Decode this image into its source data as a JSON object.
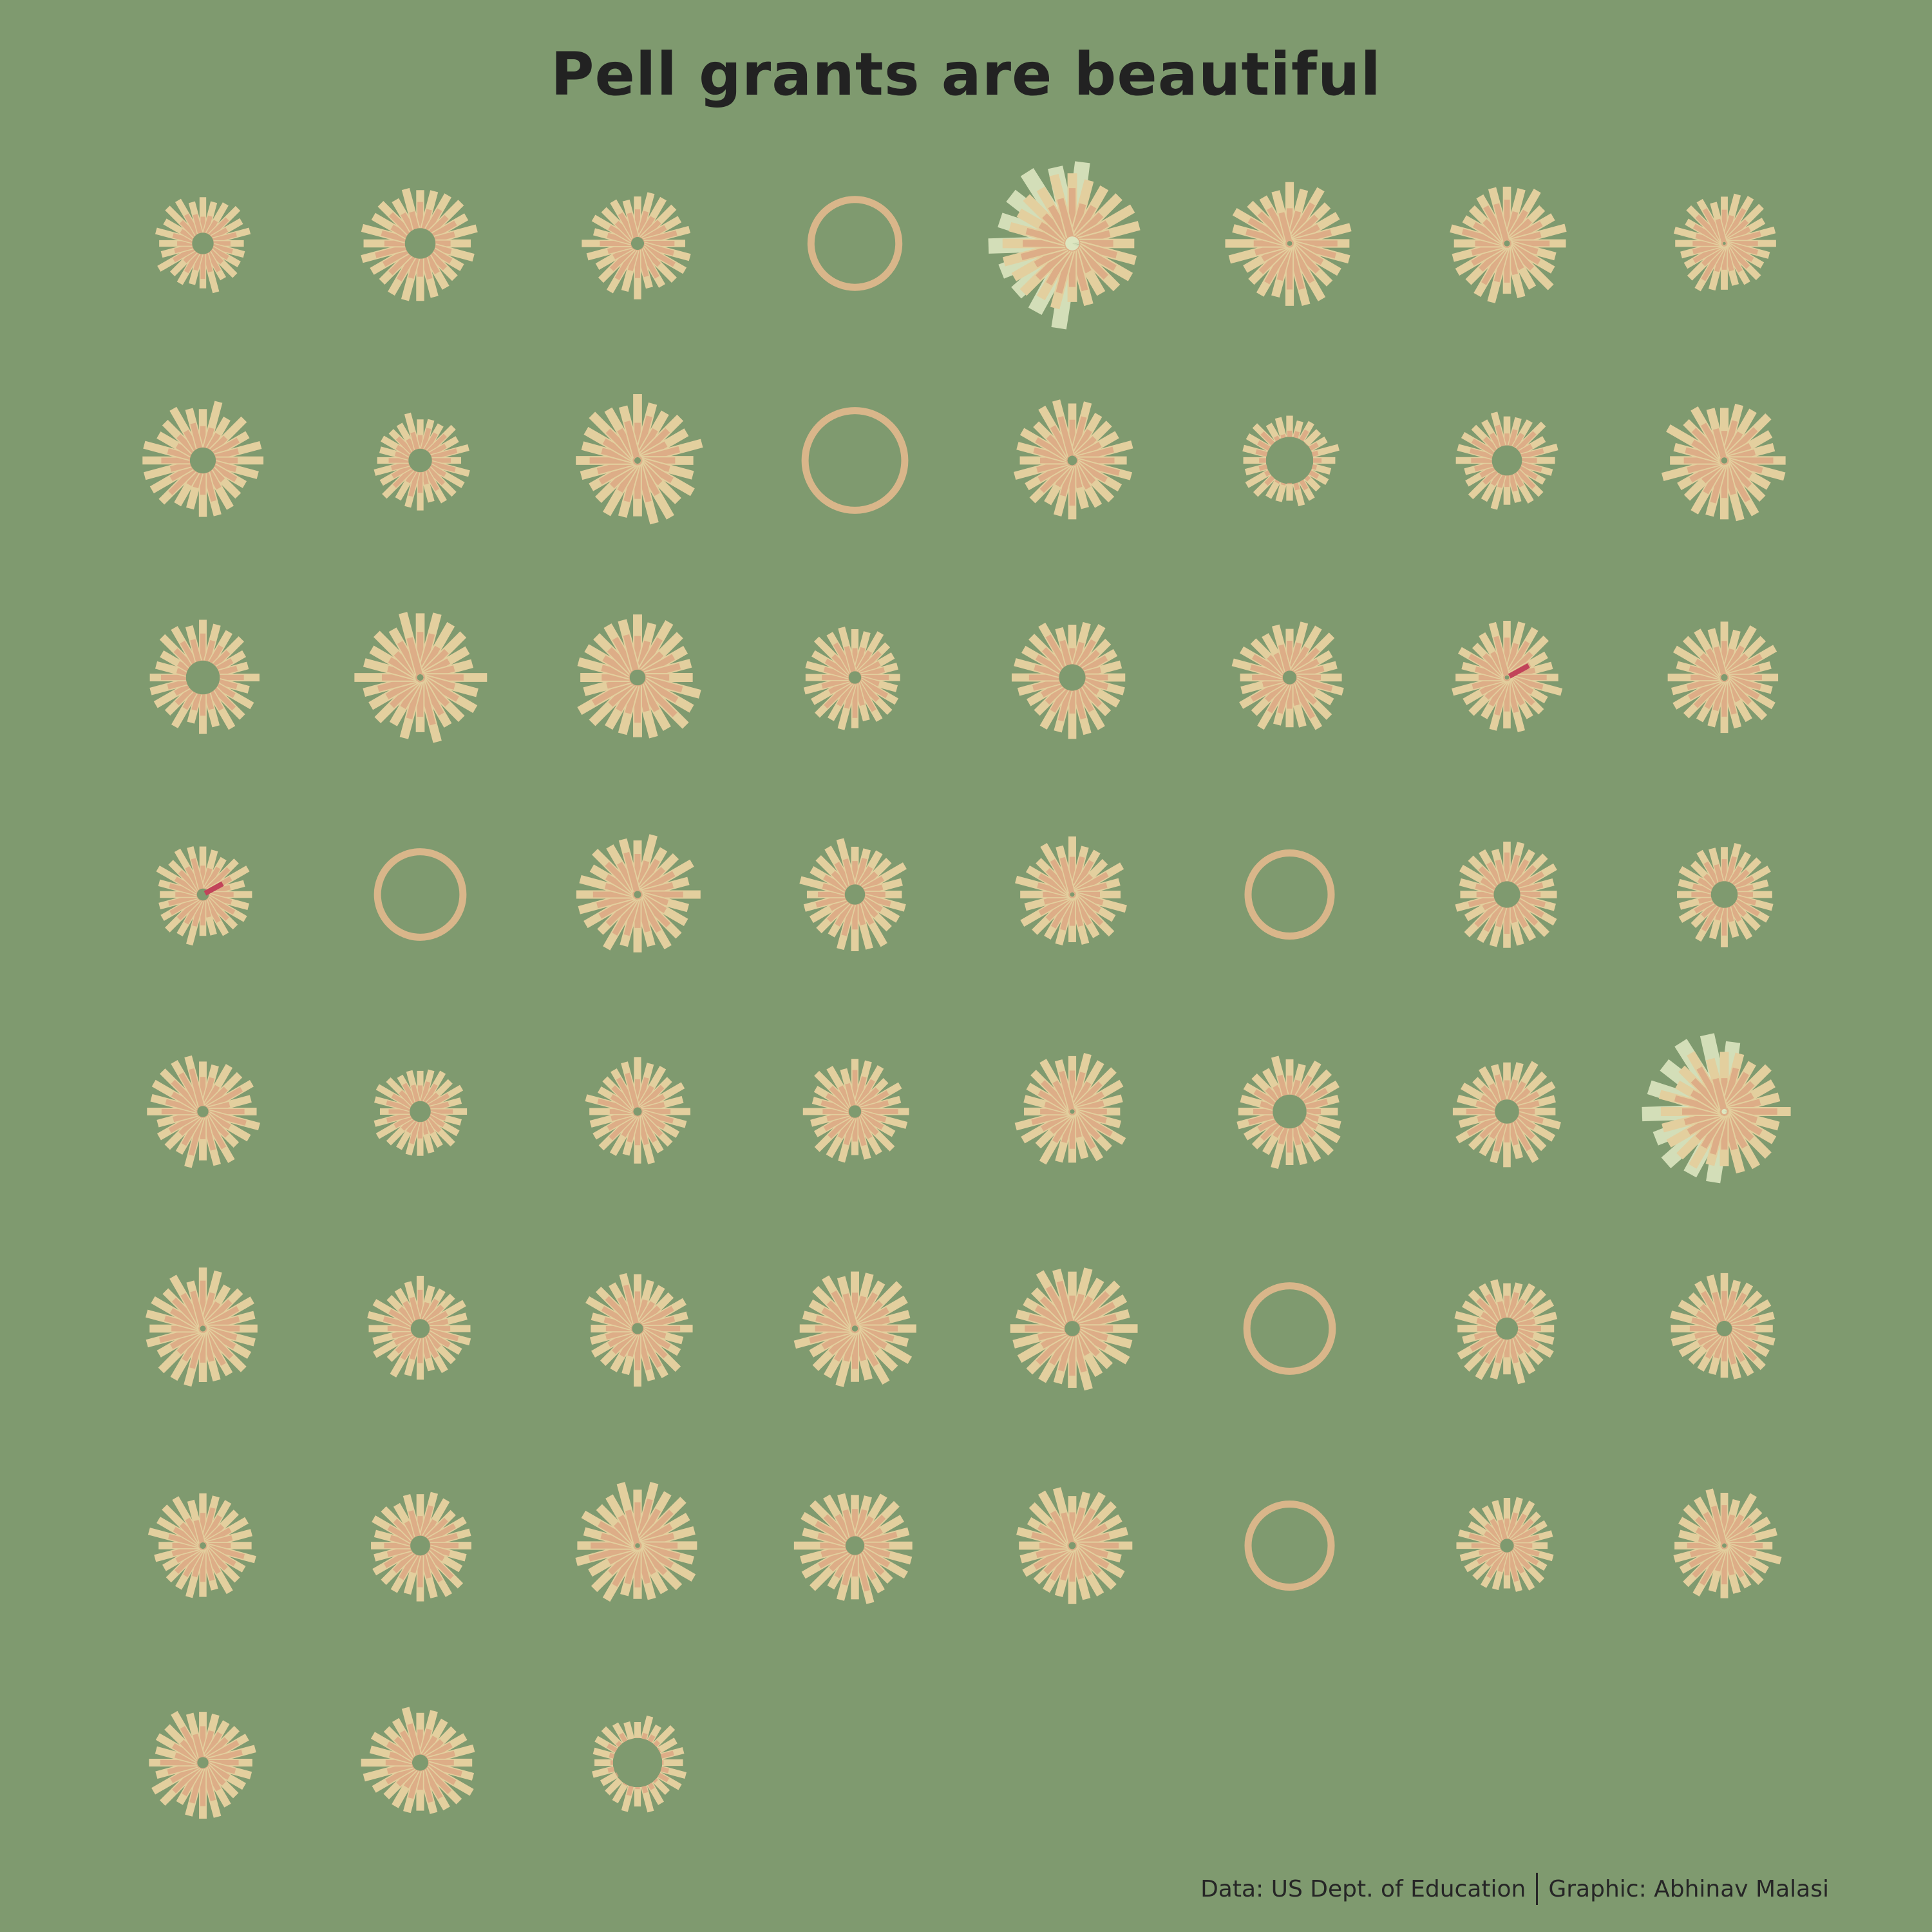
{
  "page": {
    "title": "Pell grants are beautiful",
    "caption_data": "Data: US Dept. of Education",
    "caption_graphic": "Graphic: Abhinav Malasi"
  },
  "colors": {
    "background": "#7f9a6f",
    "title": "#222222",
    "bar_outer": "#e3cf9e",
    "bar_inner": "#dba27f",
    "ring": "#d9b68a",
    "highlight": "#c2435a",
    "pale": "#dde6c0"
  },
  "chart_data": {
    "type": "radial-bar-small-multiples",
    "title": "Pell grants are beautiful",
    "xlabel": "",
    "ylabel": "",
    "grid": false,
    "layout": {
      "columns": 8
    },
    "flowers": [
      {
        "bars": 24,
        "scale": 0.8,
        "hole": 0.22,
        "style": "bars"
      },
      {
        "bars": 24,
        "scale": 0.96,
        "hole": 0.26,
        "style": "bars"
      },
      {
        "bars": 24,
        "scale": 0.88,
        "hole": 0.12,
        "style": "bars"
      },
      {
        "bars": 0,
        "scale": 0.74,
        "hole": 0,
        "style": "ring"
      },
      {
        "bars": 24,
        "scale": 1.14,
        "hole": 0.1,
        "style": "bars",
        "pale": true
      },
      {
        "bars": 24,
        "scale": 1.02,
        "hole": 0.04,
        "style": "bars"
      },
      {
        "bars": 24,
        "scale": 0.98,
        "hole": 0.05,
        "style": "bars"
      },
      {
        "bars": 24,
        "scale": 0.84,
        "hole": 0.03,
        "style": "bars"
      },
      {
        "bars": 24,
        "scale": 0.96,
        "hole": 0.22,
        "style": "bars"
      },
      {
        "bars": 24,
        "scale": 0.8,
        "hole": 0.24,
        "style": "bars"
      },
      {
        "bars": 24,
        "scale": 1.06,
        "hole": 0.05,
        "style": "bars"
      },
      {
        "bars": 0,
        "scale": 0.84,
        "hole": 0,
        "style": "ring"
      },
      {
        "bars": 24,
        "scale": 0.98,
        "hole": 0.08,
        "style": "bars"
      },
      {
        "bars": 24,
        "scale": 0.8,
        "hole": 0.48,
        "style": "bars"
      },
      {
        "bars": 24,
        "scale": 0.82,
        "hole": 0.3,
        "style": "bars"
      },
      {
        "bars": 24,
        "scale": 1.02,
        "hole": 0.05,
        "style": "bars"
      },
      {
        "bars": 24,
        "scale": 0.92,
        "hole": 0.3,
        "style": "bars"
      },
      {
        "bars": 24,
        "scale": 1.06,
        "hole": 0.05,
        "style": "bars"
      },
      {
        "bars": 24,
        "scale": 1.08,
        "hole": 0.12,
        "style": "bars"
      },
      {
        "bars": 24,
        "scale": 0.86,
        "hole": 0.12,
        "style": "bars"
      },
      {
        "bars": 24,
        "scale": 0.98,
        "hole": 0.22,
        "style": "bars"
      },
      {
        "bars": 24,
        "scale": 0.94,
        "hole": 0.12,
        "style": "bars"
      },
      {
        "bars": 24,
        "scale": 0.9,
        "hole": 0.04,
        "style": "bars",
        "highlight": true
      },
      {
        "bars": 24,
        "scale": 0.92,
        "hole": 0.06,
        "style": "bars"
      },
      {
        "bars": 24,
        "scale": 0.82,
        "hole": 0.12,
        "style": "bars",
        "highlight": true
      },
      {
        "bars": 0,
        "scale": 0.72,
        "hole": 0,
        "style": "ring"
      },
      {
        "bars": 24,
        "scale": 1.0,
        "hole": 0.06,
        "style": "bars"
      },
      {
        "bars": 24,
        "scale": 0.92,
        "hole": 0.18,
        "style": "bars"
      },
      {
        "bars": 24,
        "scale": 0.92,
        "hole": 0.04,
        "style": "bars"
      },
      {
        "bars": 0,
        "scale": 0.7,
        "hole": 0,
        "style": "ring"
      },
      {
        "bars": 24,
        "scale": 0.9,
        "hole": 0.24,
        "style": "bars"
      },
      {
        "bars": 24,
        "scale": 0.84,
        "hole": 0.26,
        "style": "bars"
      },
      {
        "bars": 24,
        "scale": 0.92,
        "hole": 0.1,
        "style": "bars"
      },
      {
        "bars": 24,
        "scale": 0.78,
        "hole": 0.22,
        "style": "bars"
      },
      {
        "bars": 24,
        "scale": 0.86,
        "hole": 0.08,
        "style": "bars"
      },
      {
        "bars": 24,
        "scale": 0.86,
        "hole": 0.12,
        "style": "bars"
      },
      {
        "bars": 24,
        "scale": 0.94,
        "hole": 0.04,
        "style": "bars"
      },
      {
        "bars": 24,
        "scale": 0.92,
        "hole": 0.3,
        "style": "bars"
      },
      {
        "bars": 24,
        "scale": 0.9,
        "hole": 0.22,
        "style": "bars"
      },
      {
        "bars": 24,
        "scale": 1.08,
        "hole": 0.04,
        "style": "bars",
        "pale": true
      },
      {
        "bars": 24,
        "scale": 0.96,
        "hole": 0.05,
        "style": "bars"
      },
      {
        "bars": 24,
        "scale": 0.86,
        "hole": 0.18,
        "style": "bars"
      },
      {
        "bars": 24,
        "scale": 0.92,
        "hole": 0.1,
        "style": "bars"
      },
      {
        "bars": 24,
        "scale": 1.0,
        "hole": 0.05,
        "style": "bars"
      },
      {
        "bars": 24,
        "scale": 1.04,
        "hole": 0.12,
        "style": "bars"
      },
      {
        "bars": 0,
        "scale": 0.72,
        "hole": 0,
        "style": "ring"
      },
      {
        "bars": 24,
        "scale": 0.9,
        "hole": 0.2,
        "style": "bars"
      },
      {
        "bars": 24,
        "scale": 0.9,
        "hole": 0.14,
        "style": "bars"
      },
      {
        "bars": 24,
        "scale": 0.88,
        "hole": 0.06,
        "style": "bars"
      },
      {
        "bars": 24,
        "scale": 0.9,
        "hole": 0.18,
        "style": "bars"
      },
      {
        "bars": 24,
        "scale": 1.02,
        "hole": 0.04,
        "style": "bars"
      },
      {
        "bars": 24,
        "scale": 0.96,
        "hole": 0.16,
        "style": "bars"
      },
      {
        "bars": 24,
        "scale": 0.98,
        "hole": 0.06,
        "style": "bars"
      },
      {
        "bars": 0,
        "scale": 0.7,
        "hole": 0,
        "style": "ring"
      },
      {
        "bars": 24,
        "scale": 0.8,
        "hole": 0.14,
        "style": "bars"
      },
      {
        "bars": 24,
        "scale": 0.92,
        "hole": 0.04,
        "style": "bars"
      },
      {
        "bars": 24,
        "scale": 0.92,
        "hole": 0.1,
        "style": "bars"
      },
      {
        "bars": 24,
        "scale": 0.94,
        "hole": 0.14,
        "style": "bars"
      },
      {
        "bars": 24,
        "scale": 0.8,
        "hole": 0.5,
        "style": "bars"
      }
    ]
  }
}
